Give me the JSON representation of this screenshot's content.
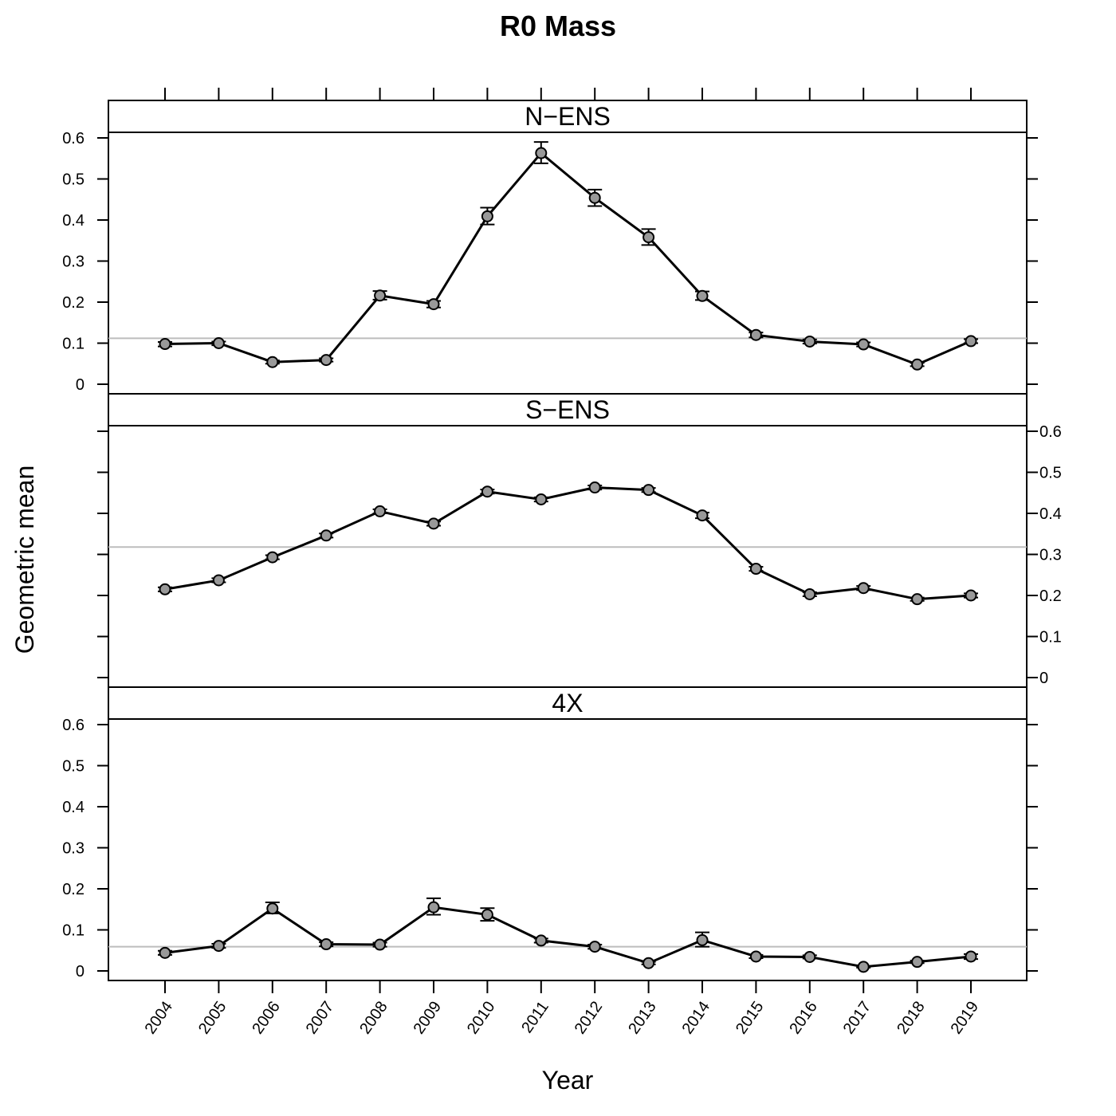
{
  "chart_data": {
    "type": "line",
    "title": "R0 Mass",
    "xlabel": "Year",
    "ylabel": "Geometric mean",
    "ylim": [
      0,
      0.6
    ],
    "y_ticks": [
      "0",
      "0.1",
      "0.2",
      "0.3",
      "0.4",
      "0.5",
      "0.6"
    ],
    "categories": [
      "2004",
      "2005",
      "2006",
      "2007",
      "2008",
      "2009",
      "2010",
      "2011",
      "2012",
      "2013",
      "2014",
      "2015",
      "2016",
      "2017",
      "2018",
      "2019"
    ],
    "panels": [
      {
        "name": "N−ENS",
        "reference_line": 0.112,
        "values": [
          0.098,
          0.1,
          0.054,
          0.059,
          0.216,
          0.195,
          0.409,
          0.563,
          0.454,
          0.358,
          0.215,
          0.12,
          0.104,
          0.097,
          0.048,
          0.105
        ],
        "lower": [
          0.092,
          0.095,
          0.05,
          0.055,
          0.206,
          0.187,
          0.389,
          0.538,
          0.434,
          0.339,
          0.205,
          0.114,
          0.099,
          0.092,
          0.044,
          0.1
        ],
        "upper": [
          0.103,
          0.104,
          0.058,
          0.063,
          0.227,
          0.203,
          0.43,
          0.59,
          0.474,
          0.378,
          0.226,
          0.126,
          0.109,
          0.102,
          0.052,
          0.11
        ]
      },
      {
        "name": "S−ENS",
        "reference_line": 0.318,
        "values": [
          0.215,
          0.237,
          0.293,
          0.346,
          0.405,
          0.375,
          0.453,
          0.434,
          0.463,
          0.457,
          0.395,
          0.265,
          0.203,
          0.218,
          0.191,
          0.2
        ],
        "lower": [
          0.21,
          0.232,
          0.288,
          0.341,
          0.4,
          0.37,
          0.448,
          0.429,
          0.458,
          0.452,
          0.388,
          0.26,
          0.198,
          0.213,
          0.187,
          0.195
        ],
        "upper": [
          0.22,
          0.242,
          0.298,
          0.351,
          0.41,
          0.38,
          0.458,
          0.439,
          0.468,
          0.462,
          0.402,
          0.27,
          0.208,
          0.223,
          0.195,
          0.205
        ]
      },
      {
        "name": "4X",
        "reference_line": 0.059,
        "values": [
          0.044,
          0.061,
          0.152,
          0.065,
          0.064,
          0.155,
          0.137,
          0.074,
          0.059,
          0.019,
          0.075,
          0.035,
          0.034,
          0.01,
          0.022,
          0.035
        ],
        "lower": [
          0.039,
          0.056,
          0.14,
          0.06,
          0.059,
          0.137,
          0.122,
          0.069,
          0.054,
          0.016,
          0.059,
          0.031,
          0.03,
          0.008,
          0.019,
          0.029
        ],
        "upper": [
          0.049,
          0.066,
          0.167,
          0.07,
          0.069,
          0.177,
          0.153,
          0.079,
          0.064,
          0.022,
          0.094,
          0.039,
          0.038,
          0.012,
          0.025,
          0.041
        ]
      }
    ],
    "colors": {
      "line": "#000000",
      "point_fill": "#999999",
      "reference_line": "#bdbdbd",
      "frame": "#000000"
    }
  }
}
